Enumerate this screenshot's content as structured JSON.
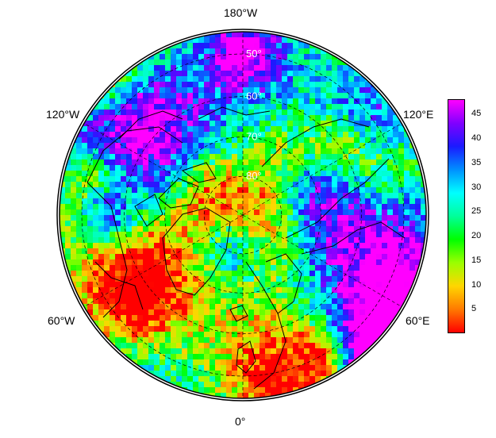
{
  "map": {
    "longitude_labels": {
      "top": "180°W",
      "upper_left": "120°W",
      "upper_right": "120°E",
      "lower_left": "60°W",
      "lower_right": "60°E",
      "bottom": "0°"
    },
    "latitude_labels": [
      "50°",
      "60°",
      "70°",
      "80°"
    ],
    "projection": "north polar stereographic",
    "coastlines": true,
    "graticule_style": "dashed"
  },
  "colorbar": {
    "ticks": [
      "45",
      "40",
      "35",
      "30",
      "25",
      "20",
      "15",
      "10",
      "5"
    ],
    "min": 0,
    "max": 48,
    "colormap": [
      "#ff0000",
      "#ff7a00",
      "#ffd600",
      "#9aff00",
      "#00ff00",
      "#00ff9a",
      "#00ffff",
      "#0090ff",
      "#1a1aff",
      "#8000ff",
      "#ff00ff"
    ]
  }
}
